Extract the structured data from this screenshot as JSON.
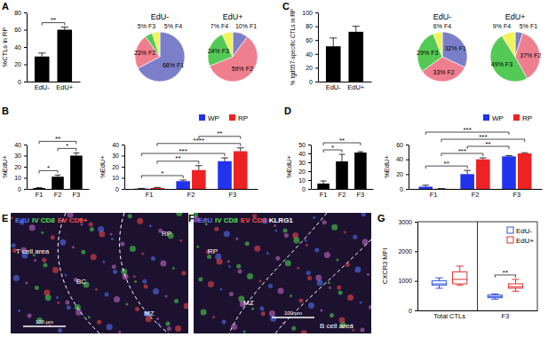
{
  "chart_data": [
    {
      "type": "bar",
      "panel": "A",
      "ylabel": "%CTLs in RP",
      "categories": [
        "EdU-",
        "EdU+"
      ],
      "values": [
        29,
        60
      ],
      "errors": [
        4,
        3
      ],
      "color": "#000000",
      "ylim": [
        0,
        80
      ],
      "yticks": [
        0,
        20,
        40,
        60,
        80
      ],
      "pairs": [
        {
          "from": "EdU-",
          "to": "EdU+",
          "label": "**"
        }
      ]
    },
    {
      "type": "pie",
      "categories": [
        "F1",
        "F2",
        "F3",
        "F4"
      ],
      "colors": [
        "#7b7fc9",
        "#ef7f8f",
        "#55c955",
        "#f2f25a"
      ],
      "series": [
        {
          "name": "EdU-",
          "values": [
            68,
            23,
            5,
            5
          ],
          "value_labels": [
            "68%",
            "23%",
            "5%",
            "5%"
          ]
        },
        {
          "name": "EdU+",
          "values": [
            10,
            59,
            24,
            7
          ],
          "value_labels": [
            "10%",
            "59%",
            "24%",
            "7%"
          ]
        }
      ]
    },
    {
      "type": "bar",
      "panel": "C",
      "ylabel": "% tgd057-specific CTLs in RP",
      "categories": [
        "EdU-",
        "EdU+"
      ],
      "values": [
        51,
        72
      ],
      "errors": [
        12,
        8
      ],
      "color": "#000000",
      "ylim": [
        0,
        100
      ],
      "yticks": [
        0,
        20,
        40,
        60,
        80,
        100
      ]
    },
    {
      "type": "pie",
      "categories": [
        "F1",
        "F2",
        "F3",
        "F4"
      ],
      "colors": [
        "#7b7fc9",
        "#ef7f8f",
        "#55c955",
        "#f2f25a"
      ],
      "series": [
        {
          "name": "EdU-",
          "values": [
            32,
            33,
            29,
            6
          ],
          "value_labels": [
            "32%",
            "33%",
            "29%",
            "6%"
          ]
        },
        {
          "name": "EdU+",
          "values": [
            5,
            37,
            49,
            9
          ],
          "value_labels": [
            "5%",
            "37%",
            "49%",
            "9%"
          ]
        }
      ]
    },
    {
      "type": "bar",
      "panel": "B",
      "ylabel": "%EdU+",
      "categories": [
        "F1",
        "F2",
        "F3"
      ],
      "values": [
        0.8,
        11,
        30
      ],
      "errors": [
        0.3,
        1.5,
        2.5
      ],
      "color": "#000000",
      "ylim": [
        0,
        40
      ],
      "yticks": [
        0,
        10,
        20,
        30,
        40
      ],
      "pairs": [
        {
          "from": "F1",
          "to": "F2",
          "label": "*"
        },
        {
          "from": "F2",
          "to": "F3",
          "label": "*"
        },
        {
          "from": "F1",
          "to": "F3",
          "label": "**"
        }
      ]
    },
    {
      "type": "bar",
      "ylabel": "%EdU+",
      "categories": [
        "F1",
        "F2",
        "F3"
      ],
      "legend": "top",
      "series": [
        {
          "name": "WP",
          "color": "#2233ee",
          "values": [
            0.3,
            7,
            25
          ],
          "errors": [
            0.2,
            1,
            3
          ]
        },
        {
          "name": "RP",
          "color": "#ee2222",
          "values": [
            0.8,
            17,
            34
          ],
          "errors": [
            0.4,
            4,
            3
          ]
        }
      ],
      "ylim": [
        0,
        40
      ],
      "yticks": [
        0,
        10,
        20,
        30,
        40
      ],
      "pairs": [
        {
          "from": [
            "F1",
            "WP"
          ],
          "to": [
            "F2",
            "WP"
          ],
          "label": "*"
        },
        {
          "from": [
            "F1",
            "RP"
          ],
          "to": [
            "F2",
            "RP"
          ],
          "label": "**"
        },
        {
          "from": [
            "F1",
            "WP"
          ],
          "to": [
            "F3",
            "WP"
          ],
          "label": "***"
        },
        {
          "from": [
            "F1",
            "RP"
          ],
          "to": [
            "F3",
            "RP"
          ],
          "label": "****"
        },
        {
          "from": [
            "F2",
            "RP"
          ],
          "to": [
            "F3",
            "RP"
          ],
          "label": "**"
        }
      ]
    },
    {
      "type": "bar",
      "panel": "D",
      "ylabel": "%EdU+",
      "categories": [
        "F1",
        "F2",
        "F3"
      ],
      "values": [
        6,
        31,
        41
      ],
      "errors": [
        3,
        8,
        1
      ],
      "color": "#000000",
      "ylim": [
        0,
        50
      ],
      "yticks": [
        0,
        10,
        20,
        30,
        40,
        50
      ],
      "pairs": [
        {
          "from": "F1",
          "to": "F2",
          "label": "*"
        },
        {
          "from": "F1",
          "to": "F3",
          "label": "**"
        }
      ]
    },
    {
      "type": "bar",
      "ylabel": "%EdU+",
      "categories": [
        "F1",
        "F2",
        "F3"
      ],
      "legend": "top",
      "series": [
        {
          "name": "WP",
          "color": "#2233ee",
          "values": [
            3,
            20,
            44
          ],
          "errors": [
            2,
            5,
            1
          ]
        },
        {
          "name": "RP",
          "color": "#ee2222",
          "values": [
            0.3,
            40,
            48
          ],
          "errors": [
            0.2,
            2,
            1
          ]
        }
      ],
      "ylim": [
        0,
        60
      ],
      "yticks": [
        0,
        20,
        40,
        60
      ],
      "pairs": [
        {
          "from": [
            "F1",
            "WP"
          ],
          "to": [
            "F2",
            "WP"
          ],
          "label": "**"
        },
        {
          "from": [
            "F1",
            "RP"
          ],
          "to": [
            "F2",
            "RP"
          ],
          "label": "***"
        },
        {
          "from": [
            "F2",
            "WP"
          ],
          "to": [
            "F3",
            "WP"
          ],
          "label": "**"
        },
        {
          "from": [
            "F1",
            "RP"
          ],
          "to": [
            "F3",
            "RP"
          ],
          "label": "***"
        },
        {
          "from": [
            "F1",
            "WP"
          ],
          "to": [
            "F3",
            "WP"
          ],
          "label": "***"
        }
      ]
    },
    {
      "type": "box",
      "panel": "G",
      "ylabel": "CXCR3 MFI",
      "categories": [
        "Total CTLs",
        "F3"
      ],
      "legend": "top-right",
      "series": [
        {
          "name": "EdU-",
          "color": "#3050e0",
          "values": [
            [
              750,
              850,
              900,
              1000,
              1100
            ],
            [
              380,
              430,
              470,
              520,
              560
            ]
          ]
        },
        {
          "name": "EdU+",
          "color": "#e03030",
          "values": [
            [
              850,
              900,
              1050,
              1300,
              1500
            ],
            [
              650,
              750,
              800,
              900,
              1050
            ]
          ]
        }
      ],
      "ylim": [
        0,
        3000
      ],
      "yticks": [
        0,
        1000,
        2000,
        3000
      ],
      "pairs": [
        {
          "from": [
            "F3",
            "EdU-"
          ],
          "to": [
            "F3",
            "EdU+"
          ],
          "label": "**"
        }
      ]
    }
  ],
  "micrographs": [
    {
      "panel": "E",
      "channels": [
        {
          "text": "EdU",
          "color": "#5a78ff"
        },
        {
          "text": "IV CD8",
          "color": "#4fe04f"
        },
        {
          "text": "EV CD8+",
          "color": "#ff4a4a"
        }
      ],
      "regions": [
        "T cell area",
        "BC",
        "MZ",
        "RP"
      ],
      "scale_bar": "100 µm"
    },
    {
      "panel": "F",
      "channels": [
        {
          "text": "EdU",
          "color": "#5a78ff"
        },
        {
          "text": "IV CD8",
          "color": "#4fe04f"
        },
        {
          "text": "EV CD8",
          "color": "#ff4a4a"
        },
        {
          "text": "KLRG1",
          "color": "#ffffff"
        }
      ],
      "regions": [
        "RP",
        "MZ",
        "B cell area"
      ],
      "scale_bar": "100 µm"
    }
  ]
}
